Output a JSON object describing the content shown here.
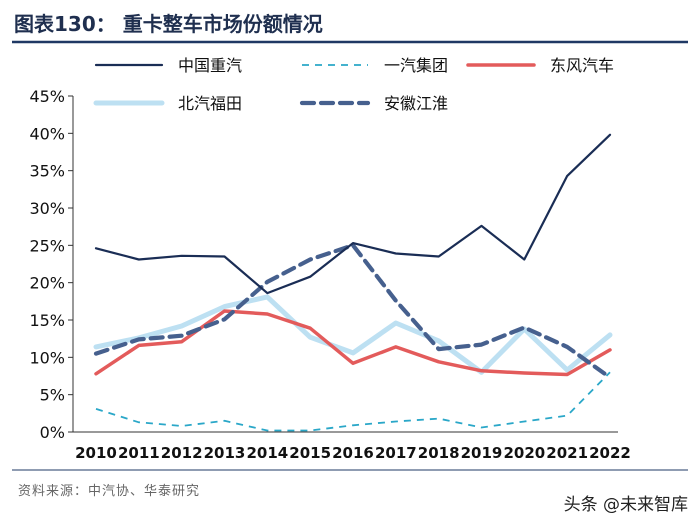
{
  "title": "图表130： 重卡整车市场份额情况",
  "source": "资料来源：中汽协、华泰研究",
  "watermark": "头条 @未来智库",
  "colors": {
    "title_bar": "#1f3864",
    "divider": "#1f3864"
  },
  "chart_data": {
    "type": "line",
    "x": [
      "2010",
      "2011",
      "2012",
      "2013",
      "2014",
      "2015",
      "2016",
      "2017",
      "2018",
      "2019",
      "2020",
      "2021",
      "2022"
    ],
    "ylim": [
      0,
      45
    ],
    "yticks": [
      "0%",
      "5%",
      "10%",
      "15%",
      "20%",
      "25%",
      "30%",
      "35%",
      "40%",
      "45%"
    ],
    "grid": false,
    "legend": "top",
    "series": [
      {
        "name": "中国重汽",
        "color": "#1a2d55",
        "style": "solid-thin",
        "values": [
          24.6,
          23.1,
          23.6,
          23.5,
          18.6,
          20.8,
          25.3,
          23.9,
          23.5,
          27.6,
          23.1,
          34.3,
          39.8
        ]
      },
      {
        "name": "一汽集团",
        "color": "#2aa7c8",
        "style": "dashed-thin",
        "values": [
          3.1,
          1.3,
          0.8,
          1.5,
          0.2,
          0.2,
          0.9,
          1.4,
          1.8,
          0.6,
          1.4,
          2.2,
          8.0
        ]
      },
      {
        "name": "东风汽车",
        "color": "#e35b5b",
        "style": "solid-thick",
        "values": [
          7.8,
          11.6,
          12.1,
          16.2,
          15.8,
          13.9,
          9.2,
          11.4,
          9.4,
          8.2,
          7.9,
          7.7,
          11.0
        ]
      },
      {
        "name": "北汽福田",
        "color": "#bde0f2",
        "style": "solid-thicker",
        "values": [
          11.4,
          12.6,
          14.2,
          16.8,
          18.1,
          12.7,
          10.6,
          14.6,
          12.2,
          8.0,
          13.8,
          8.3,
          13.0
        ]
      },
      {
        "name": "安徽江淮",
        "color": "#46608e",
        "style": "dashed-thick",
        "values": [
          10.5,
          12.4,
          12.9,
          15.1,
          20.1,
          23.1,
          25.0,
          17.6,
          11.1,
          11.7,
          14.0,
          11.4,
          7.3
        ]
      }
    ]
  }
}
